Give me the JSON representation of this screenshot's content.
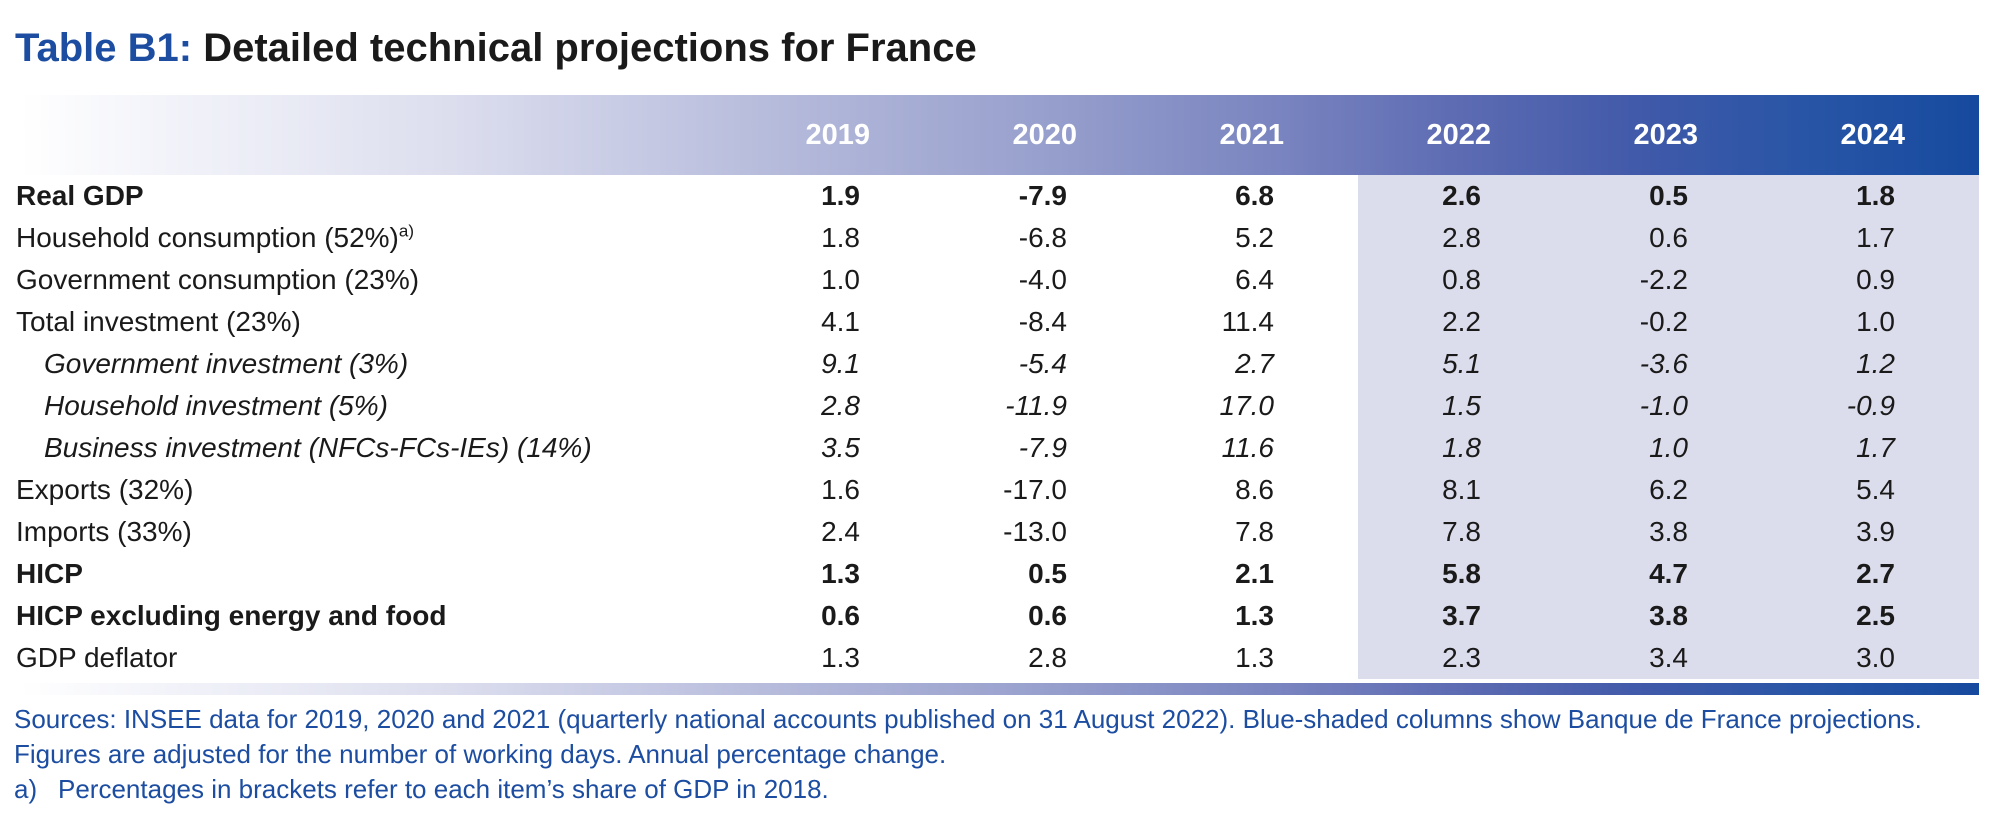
{
  "title": {
    "label": "Table B1",
    "separator": ": ",
    "text": "Detailed technical projections for France"
  },
  "table": {
    "columns": [
      "2019",
      "2020",
      "2021",
      "2022",
      "2023",
      "2024"
    ],
    "projection_columns_start_index": 3,
    "rows": [
      {
        "label": "Real GDP",
        "style": "bold",
        "values": [
          "1.9",
          "-7.9",
          "6.8",
          "2.6",
          "0.5",
          "1.8"
        ]
      },
      {
        "label": "Household consumption (52%)",
        "superscript": "a)",
        "style": "normal",
        "values": [
          "1.8",
          "-6.8",
          "5.2",
          "2.8",
          "0.6",
          "1.7"
        ]
      },
      {
        "label": "Government consumption (23%)",
        "style": "normal",
        "values": [
          "1.0",
          "-4.0",
          "6.4",
          "0.8",
          "-2.2",
          "0.9"
        ]
      },
      {
        "label": "Total investment (23%)",
        "style": "normal",
        "values": [
          "4.1",
          "-8.4",
          "11.4",
          "2.2",
          "-0.2",
          "1.0"
        ]
      },
      {
        "label": "Government investment (3%)",
        "style": "italic-indent",
        "values": [
          "9.1",
          "-5.4",
          "2.7",
          "5.1",
          "-3.6",
          "1.2"
        ]
      },
      {
        "label": "Household investment (5%)",
        "style": "italic-indent",
        "values": [
          "2.8",
          "-11.9",
          "17.0",
          "1.5",
          "-1.0",
          "-0.9"
        ]
      },
      {
        "label": "Business investment (NFCs-FCs-IEs) (14%)",
        "style": "italic-indent",
        "values": [
          "3.5",
          "-7.9",
          "11.6",
          "1.8",
          "1.0",
          "1.7"
        ]
      },
      {
        "label": "Exports (32%)",
        "style": "normal",
        "values": [
          "1.6",
          "-17.0",
          "8.6",
          "8.1",
          "6.2",
          "5.4"
        ]
      },
      {
        "label": "Imports (33%)",
        "style": "normal",
        "values": [
          "2.4",
          "-13.0",
          "7.8",
          "7.8",
          "3.8",
          "3.9"
        ]
      },
      {
        "label": "HICP",
        "style": "bold",
        "values": [
          "1.3",
          "0.5",
          "2.1",
          "5.8",
          "4.7",
          "2.7"
        ]
      },
      {
        "label": "HICP excluding energy and food",
        "style": "bold",
        "values": [
          "0.6",
          "0.6",
          "1.3",
          "3.7",
          "3.8",
          "2.5"
        ]
      },
      {
        "label": "GDP deflator",
        "style": "normal",
        "values": [
          "1.3",
          "2.8",
          "1.3",
          "2.3",
          "3.4",
          "3.0"
        ]
      }
    ]
  },
  "footnotes": {
    "line1": "Sources: INSEE data for 2019, 2020 and 2021 (quarterly national accounts published on 31 August 2022). Blue-shaded columns show Banque de France projections.",
    "line2": "Figures are adjusted for the number of working days. Annual percentage change.",
    "note_a_marker": "a)",
    "note_a_text": "Percentages in brackets refer to each item’s share of GDP in 2018."
  },
  "colors": {
    "accent_blue": "#1c4da1",
    "header_gradient_dark_end": "#164a9e",
    "projection_shade": "#dcddec"
  }
}
